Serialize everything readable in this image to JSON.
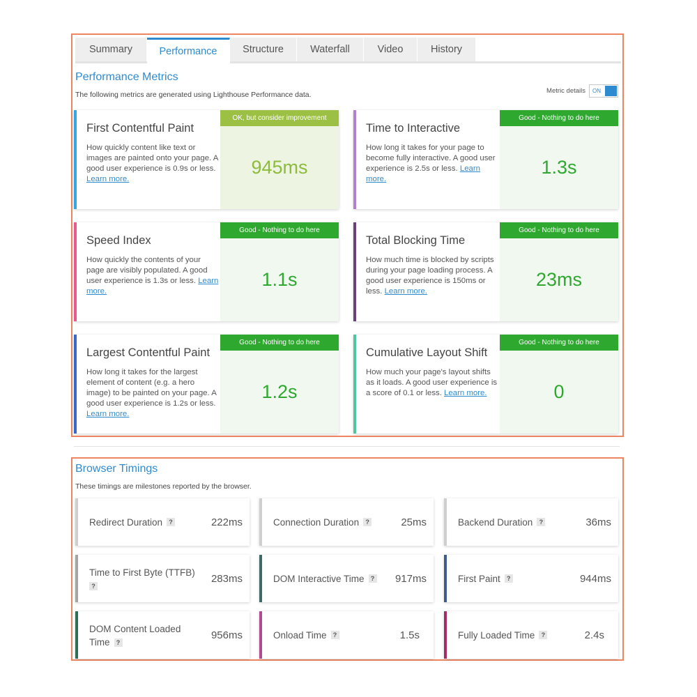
{
  "tabs": [
    {
      "label": "Summary"
    },
    {
      "label": "Performance"
    },
    {
      "label": "Structure"
    },
    {
      "label": "Waterfall"
    },
    {
      "label": "Video"
    },
    {
      "label": "History"
    }
  ],
  "active_tab": "Performance",
  "performance": {
    "title": "Performance Metrics",
    "description": "The following metrics are generated using Lighthouse Performance data.",
    "toggle_label": "Metric details",
    "toggle_state": "ON",
    "metrics": [
      {
        "title": "First Contentful Paint",
        "desc": "How quickly content like text or images are painted onto your page. A good user experience is 0.9s or less.",
        "link": "Learn more.",
        "badge": "OK, but consider improvement",
        "value": "945ms",
        "accent": "#35a6e0"
      },
      {
        "title": "Time to Interactive",
        "desc": "How long it takes for your page to become fully interactive. A good user experience is 2.5s or less.",
        "link": "Learn more.",
        "badge": "Good - Nothing to do here",
        "value": "1.3s",
        "accent": "#b47fd1"
      },
      {
        "title": "Speed Index",
        "desc": "How quickly the contents of your page are visibly populated. A good user experience is 1.3s or less.",
        "link": "Learn more.",
        "badge": "Good - Nothing to do here",
        "value": "1.1s",
        "accent": "#e9598a"
      },
      {
        "title": "Total Blocking Time",
        "desc": "How much time is blocked by scripts during your page loading process. A good user experience is 150ms or less.",
        "link": "Learn more.",
        "badge": "Good - Nothing to do here",
        "value": "23ms",
        "accent": "#6b3f7e"
      },
      {
        "title": "Largest Contentful Paint",
        "desc": "How long it takes for the largest element of content (e.g. a hero image) to be painted on your page. A good user experience is 1.2s or less.",
        "link": "Learn more.",
        "badge": "Good - Nothing to do here",
        "value": "1.2s",
        "accent": "#3b67c9"
      },
      {
        "title": "Cumulative Layout Shift",
        "desc": "How much your page's layout shifts as it loads. A good user experience is a score of 0.1 or less.",
        "link": "Learn more.",
        "badge": "Good - Nothing to do here",
        "value": "0",
        "accent": "#4dc7a0"
      }
    ]
  },
  "timings": {
    "title": "Browser Timings",
    "description": "These timings are milestones reported by the browser.",
    "help_glyph": "?",
    "items": [
      {
        "label": "Redirect Duration",
        "value": "222ms",
        "accent": "#cfcfcf"
      },
      {
        "label": "Connection Duration",
        "value": "25ms",
        "accent": "#cfcfcf"
      },
      {
        "label": "Backend Duration",
        "value": "36ms",
        "accent": "#cfcfcf"
      },
      {
        "label": "Time to First Byte (TTFB)",
        "value": "283ms",
        "accent": "#a5a5a5"
      },
      {
        "label": "DOM Interactive Time",
        "value": "917ms",
        "accent": "#3d6a66"
      },
      {
        "label": "First Paint",
        "value": "944ms",
        "accent": "#3f5a8c"
      },
      {
        "label": "DOM Content Loaded Time",
        "value": "956ms",
        "accent": "#2c6f55"
      },
      {
        "label": "Onload Time",
        "value": "1.5s",
        "accent": "#b24a8f"
      },
      {
        "label": "Fully Loaded Time",
        "value": "2.4s",
        "accent": "#a52c67"
      }
    ]
  }
}
